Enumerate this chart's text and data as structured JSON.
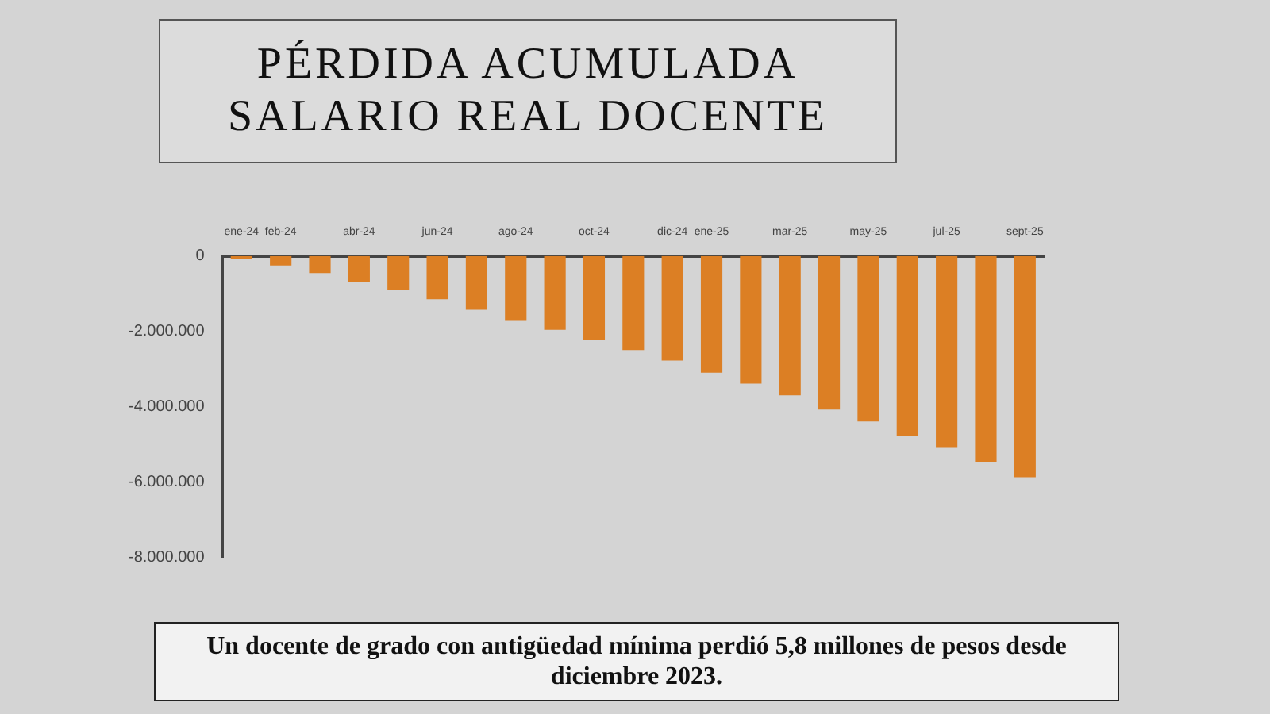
{
  "chart_data": {
    "type": "bar",
    "title": "PÉRDIDA ACUMULADA SALARIO REAL DOCENTE",
    "categories": [
      "ene-24",
      "feb-24",
      null,
      "abr-24",
      null,
      "jun-24",
      null,
      "ago-24",
      null,
      "oct-24",
      null,
      "dic-24",
      "ene-25",
      null,
      "mar-25",
      null,
      "may-25",
      null,
      "jul-25",
      null,
      "sept-25"
    ],
    "values": [
      -80000,
      -250000,
      -450000,
      -700000,
      -900000,
      -1150000,
      -1430000,
      -1700000,
      -1960000,
      -2240000,
      -2500000,
      -2780000,
      -3100000,
      -3390000,
      -3700000,
      -4080000,
      -4400000,
      -4780000,
      -5100000,
      -5470000,
      -5880000
    ],
    "color": "#dc7f24",
    "ylim": [
      -8000000,
      0
    ],
    "yticks": [
      {
        "value": -8000000,
        "label": "-8.000.000"
      },
      {
        "value": -6000000,
        "label": "-6.000.000"
      },
      {
        "value": -4000000,
        "label": "-4.000.000"
      },
      {
        "value": -2000000,
        "label": "-2.000.000"
      },
      {
        "value": 0,
        "label": "0"
      }
    ],
    "grid": false,
    "legend": false,
    "annotations": [
      "Un docente de grado con antigüedad mínima perdió 5,8 millones de pesos desde diciembre 2023."
    ]
  }
}
